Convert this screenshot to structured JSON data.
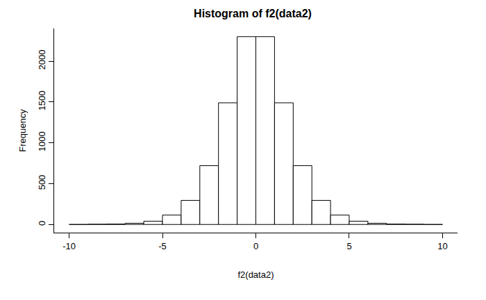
{
  "chart_data": {
    "type": "histogram",
    "title": "Histogram of f2(data2)",
    "x_label": "f2(data2)",
    "y_label": "Frequency",
    "bins": [
      -10,
      -9,
      -8,
      -7,
      -6,
      -5,
      -4,
      -3,
      -2,
      -1,
      0,
      1,
      2,
      3,
      4,
      5,
      6,
      7,
      8,
      9,
      10
    ],
    "values": [
      0,
      3,
      5,
      15,
      40,
      115,
      295,
      720,
      1490,
      2300,
      2300,
      1490,
      720,
      295,
      115,
      40,
      15,
      5,
      3,
      0
    ],
    "color": "#ffffff",
    "xlim": [
      -10.8,
      10.8
    ],
    "xticks": [
      -10,
      -5,
      0,
      5,
      10
    ],
    "ylim": [
      -100,
      2400
    ],
    "yticks": [
      0,
      500,
      1000,
      1500,
      2000
    ],
    "grid": false
  }
}
